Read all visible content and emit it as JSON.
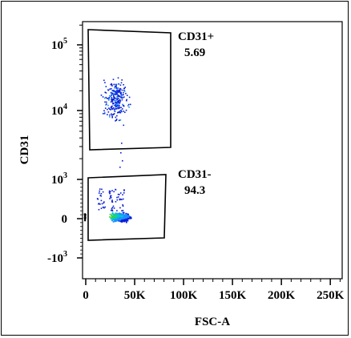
{
  "chart_data": {
    "type": "scatter",
    "xlabel": "FSC-A",
    "ylabel": "CD31",
    "xlim": [
      0,
      262144
    ],
    "x_ticks": [
      "0",
      "50K",
      "100K",
      "150K",
      "200K",
      "250K"
    ],
    "x_tick_values": [
      0,
      50000,
      100000,
      150000,
      200000,
      250000
    ],
    "y_scale": "biexponential",
    "y_ticks": [
      {
        "base": "10",
        "exp": "5",
        "value": 100000
      },
      {
        "base": "10",
        "exp": "4",
        "value": 10000
      },
      {
        "base": "10",
        "exp": "3",
        "value": 1000
      },
      {
        "base": "0",
        "exp": "",
        "value": 0
      },
      {
        "base": "-10",
        "exp": "3",
        "value": -1000
      }
    ],
    "gates": [
      {
        "name": "CD31+",
        "percent": "5.69",
        "x_range": [
          2000,
          85000
        ],
        "y_range": [
          2800,
          120000
        ]
      },
      {
        "name": "CD31-",
        "percent": "94.3",
        "x_range": [
          2000,
          80000
        ],
        "y_range": [
          -700,
          1000
        ]
      }
    ],
    "populations": [
      {
        "gate": "CD31+",
        "x_center": 30000,
        "y_center": 15000,
        "events": 260
      },
      {
        "gate": "CD31-",
        "x_center": 35000,
        "y_center": 0,
        "events": 900
      }
    ],
    "density_colors": [
      "#0a1fd6",
      "#1e90ff",
      "#00c8c8",
      "#3cd23c",
      "#f0e020"
    ]
  }
}
